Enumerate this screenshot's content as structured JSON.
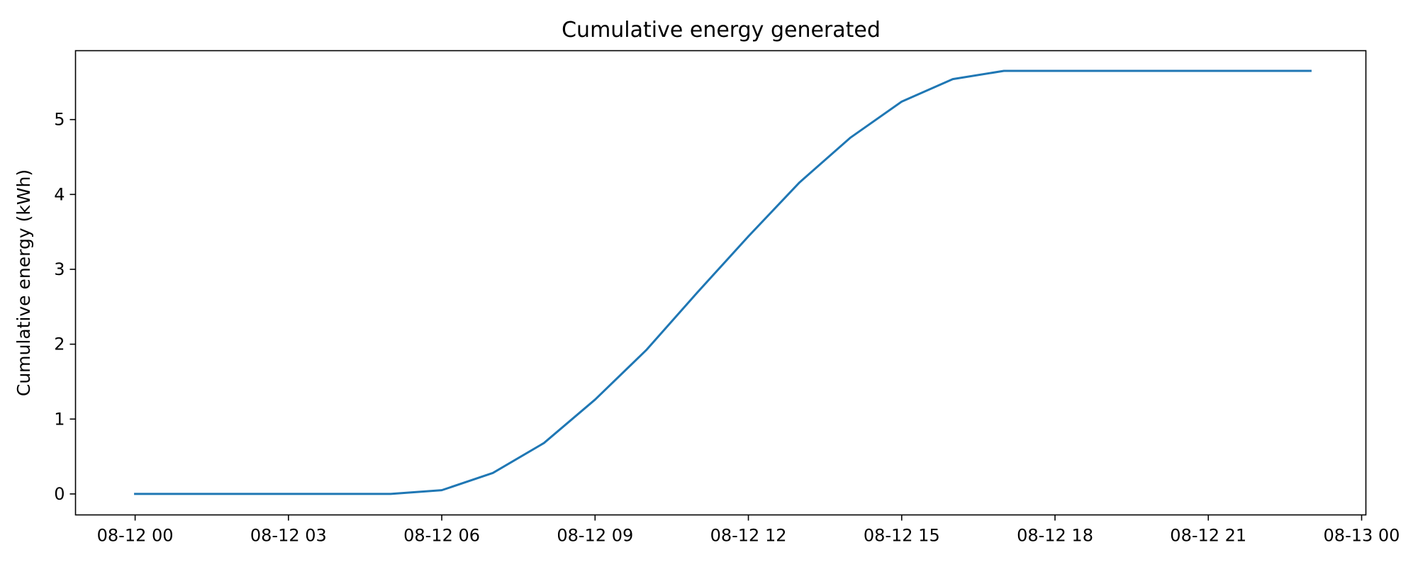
{
  "chart_data": {
    "type": "line",
    "title": "Cumulative energy generated",
    "xlabel": "",
    "ylabel": "Cumulative energy (kWh)",
    "x_ticks": [
      "08-12 00",
      "08-12 03",
      "08-12 06",
      "08-12 09",
      "08-12 12",
      "08-12 15",
      "08-12 18",
      "08-12 21",
      "08-13 00"
    ],
    "y_ticks": [
      "0",
      "1",
      "2",
      "3",
      "4",
      "5"
    ],
    "xlim": [
      "2024-08-11T22:50",
      "2024-08-13T00:05"
    ],
    "ylim": [
      -0.28,
      5.92
    ],
    "grid": false,
    "legend": "none",
    "series": [
      {
        "color": "#1f77b4",
        "x": [
          "2024-08-12T00:00",
          "2024-08-12T01:00",
          "2024-08-12T02:00",
          "2024-08-12T03:00",
          "2024-08-12T04:00",
          "2024-08-12T05:00",
          "2024-08-12T06:00",
          "2024-08-12T07:00",
          "2024-08-12T08:00",
          "2024-08-12T09:00",
          "2024-08-12T10:00",
          "2024-08-12T11:00",
          "2024-08-12T12:00",
          "2024-08-12T13:00",
          "2024-08-12T14:00",
          "2024-08-12T15:00",
          "2024-08-12T16:00",
          "2024-08-12T17:00",
          "2024-08-12T18:00",
          "2024-08-12T19:00",
          "2024-08-12T20:00",
          "2024-08-12T21:00",
          "2024-08-12T22:00",
          "2024-08-12T23:00"
        ],
        "y": [
          0,
          0,
          0,
          0,
          0,
          0,
          0.05,
          0.28,
          0.68,
          1.26,
          1.92,
          2.69,
          3.44,
          4.16,
          4.76,
          5.24,
          5.54,
          5.65,
          5.65,
          5.65,
          5.65,
          5.65,
          5.65,
          5.65
        ]
      }
    ]
  }
}
